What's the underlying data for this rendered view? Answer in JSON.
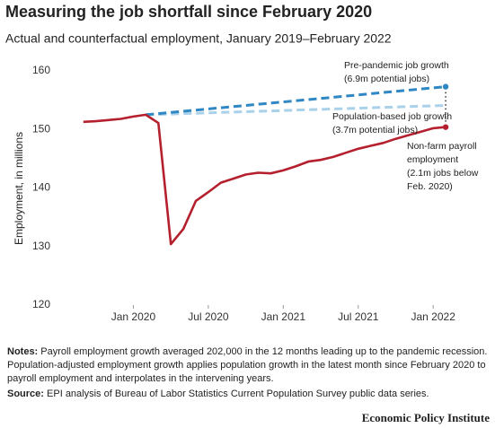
{
  "chart_data": {
    "type": "line",
    "title": "Measuring the job shortfall since February 2020",
    "subtitle": "Actual and counterfactual employment, January 2019–February 2022",
    "ylabel": "Employment, in millions",
    "x": [
      "2019-09",
      "2019-10",
      "2019-11",
      "2019-12",
      "2020-01",
      "2020-02",
      "2020-03",
      "2020-04",
      "2020-05",
      "2020-06",
      "2020-07",
      "2020-08",
      "2020-09",
      "2020-10",
      "2020-11",
      "2020-12",
      "2021-01",
      "2021-02",
      "2021-03",
      "2021-04",
      "2021-05",
      "2021-06",
      "2021-07",
      "2021-08",
      "2021-09",
      "2021-10",
      "2021-11",
      "2021-12",
      "2022-01",
      "2022-02"
    ],
    "series": [
      {
        "name": "Non-farm payroll employment",
        "color": "#b5202e",
        "dashed": false,
        "values": [
          151.3,
          151.4,
          151.6,
          151.8,
          152.2,
          152.5,
          151.1,
          130.4,
          133.0,
          137.8,
          139.3,
          140.9,
          141.6,
          142.3,
          142.6,
          142.5,
          143.0,
          143.7,
          144.5,
          144.8,
          145.3,
          146.0,
          146.7,
          147.2,
          147.7,
          148.4,
          149.0,
          149.6,
          150.2,
          150.4
        ]
      },
      {
        "name": "Pre-pandemic job growth",
        "color": "#2f87c3",
        "dashed": true,
        "values": [
          null,
          null,
          null,
          null,
          null,
          152.5,
          152.7,
          152.9,
          153.1,
          153.3,
          153.5,
          153.7,
          153.9,
          154.1,
          154.3,
          154.5,
          154.7,
          154.9,
          155.1,
          155.3,
          155.5,
          155.7,
          155.9,
          156.1,
          156.3,
          156.5,
          156.7,
          156.9,
          157.1,
          157.3
        ]
      },
      {
        "name": "Population-based job growth",
        "color": "#a9d1ea",
        "dashed": true,
        "values": [
          null,
          null,
          null,
          null,
          null,
          152.5,
          152.57,
          152.63,
          152.7,
          152.77,
          152.83,
          152.9,
          152.97,
          153.03,
          153.1,
          153.17,
          153.23,
          153.3,
          153.37,
          153.43,
          153.5,
          153.57,
          153.63,
          153.7,
          153.77,
          153.83,
          153.9,
          153.97,
          154.03,
          154.1
        ]
      }
    ],
    "annotations": [
      {
        "lines": [
          "Pre-pandemic job growth",
          "(6.9m potential jobs)"
        ]
      },
      {
        "lines": [
          "Population-based job growth",
          "(3.7m potential jobs)"
        ]
      },
      {
        "lines": [
          "Non-farm payroll",
          "employment",
          "(2.1m jobs below",
          "Feb. 2020)"
        ]
      }
    ],
    "xlim": [
      "2019-07",
      "2022-03"
    ],
    "xticks": [
      {
        "value": "2020-01",
        "label": "Jan 2020"
      },
      {
        "value": "2020-07",
        "label": "Jul 2020"
      },
      {
        "value": "2021-01",
        "label": "Jan 2021"
      },
      {
        "value": "2021-07",
        "label": "Jul 2021"
      },
      {
        "value": "2022-01",
        "label": "Jan 2022"
      }
    ],
    "ylim": [
      120,
      160
    ],
    "yticks": [
      120,
      130,
      140,
      150,
      160
    ],
    "grid": false
  },
  "notes": {
    "label": "Notes:",
    "text": "Payroll employment growth averaged 202,000 in the 12 months leading up to the pandemic recession. Population-adjusted employment growth applies population growth in the latest month since February 2020 to payroll employment and interpolates in the intervening years."
  },
  "source": {
    "label": "Source:",
    "text": "EPI analysis of Bureau of Labor Statistics Current Population Survey public data series."
  },
  "logo": "Economic Policy Institute"
}
